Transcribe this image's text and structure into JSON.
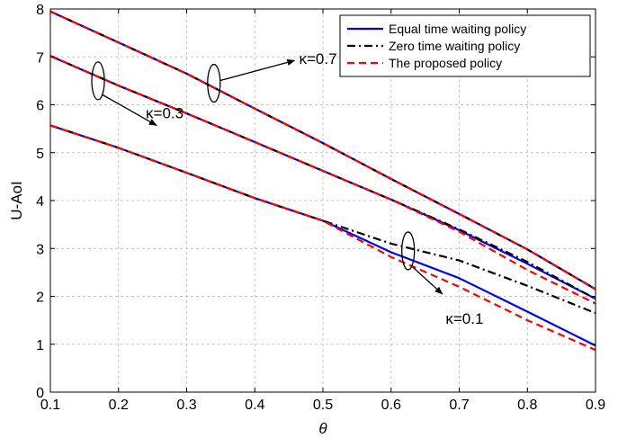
{
  "chart_data": {
    "type": "line",
    "xlabel": "θ",
    "ylabel": "U-AoI",
    "xlim": [
      0.1,
      0.9
    ],
    "ylim": [
      0,
      8
    ],
    "xticks": [
      "0.1",
      "0.2",
      "0.3",
      "0.4",
      "0.5",
      "0.6",
      "0.7",
      "0.8",
      "0.9"
    ],
    "yticks": [
      "0",
      "1",
      "2",
      "3",
      "4",
      "5",
      "6",
      "7",
      "8"
    ],
    "grid": true,
    "legend_position": "top-right",
    "legend": [
      {
        "name": "Equal time waiting policy",
        "color": "#0000ff",
        "dash": "solid"
      },
      {
        "name": "Zero time waiting policy",
        "color": "#000000",
        "dash": "dashdot"
      },
      {
        "name": "The proposed policy",
        "color": "#ff0000",
        "dash": "dashed"
      }
    ],
    "x": [
      0.1,
      0.2,
      0.3,
      0.4,
      0.5,
      0.6,
      0.7,
      0.8,
      0.9
    ],
    "groups": [
      {
        "kappa_label": "κ=0.7",
        "series": [
          {
            "policy": "Equal time waiting policy",
            "values": [
              7.95,
              7.3,
              6.65,
              5.92,
              5.2,
              4.45,
              3.72,
              2.98,
              2.15
            ]
          },
          {
            "policy": "Zero time waiting policy",
            "values": [
              7.95,
              7.3,
              6.65,
              5.92,
              5.2,
              4.45,
              3.72,
              2.98,
              2.15
            ]
          },
          {
            "policy": "The proposed policy",
            "values": [
              7.95,
              7.3,
              6.65,
              5.92,
              5.2,
              4.45,
              3.72,
              2.98,
              2.15
            ]
          }
        ]
      },
      {
        "kappa_label": "κ=0.3",
        "series": [
          {
            "policy": "Equal time waiting policy",
            "values": [
              7.02,
              6.4,
              5.82,
              5.22,
              4.62,
              4.02,
              3.38,
              2.68,
              1.95
            ]
          },
          {
            "policy": "Zero time waiting policy",
            "values": [
              7.02,
              6.4,
              5.82,
              5.22,
              4.62,
              4.02,
              3.4,
              2.72,
              1.95
            ]
          },
          {
            "policy": "The proposed policy",
            "values": [
              7.02,
              6.4,
              5.82,
              5.22,
              4.62,
              4.02,
              3.35,
              2.55,
              1.85
            ]
          }
        ]
      },
      {
        "kappa_label": "κ=0.1",
        "series": [
          {
            "policy": "Equal time waiting policy",
            "values": [
              5.57,
              5.1,
              4.58,
              4.05,
              3.58,
              2.92,
              2.38,
              1.68,
              0.97
            ]
          },
          {
            "policy": "Zero time waiting policy",
            "values": [
              5.57,
              5.1,
              4.58,
              4.05,
              3.58,
              3.1,
              2.75,
              2.22,
              1.65
            ]
          },
          {
            "policy": "The proposed policy",
            "values": [
              5.57,
              5.1,
              4.58,
              4.05,
              3.58,
              2.82,
              2.2,
              1.5,
              0.88
            ]
          }
        ]
      }
    ],
    "annotations": [
      {
        "text": "κ=0.7",
        "group": 0,
        "ellipse_at": [
          0.34,
          6.45
        ],
        "text_at": [
          0.465,
          6.85
        ]
      },
      {
        "text": "κ=0.3",
        "group": 1,
        "ellipse_at": [
          0.17,
          6.5
        ],
        "text_at": [
          0.24,
          5.72
        ]
      },
      {
        "text": "κ=0.1",
        "group": 2,
        "ellipse_at": [
          0.625,
          2.95
        ],
        "text_at": [
          0.68,
          1.43
        ]
      }
    ]
  }
}
